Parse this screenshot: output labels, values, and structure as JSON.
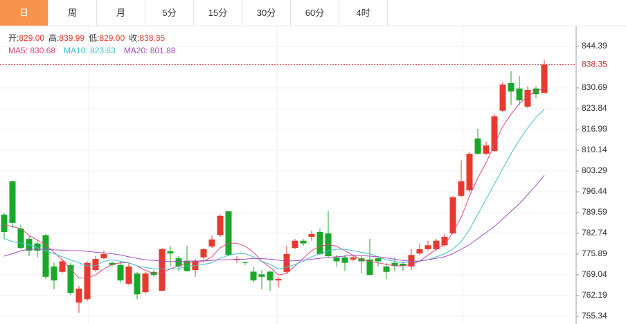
{
  "tabs": [
    "日",
    "周",
    "月",
    "5分",
    "15分",
    "30分",
    "60分",
    "4时"
  ],
  "active_tab": 0,
  "chart_data": {
    "type": "candlestick",
    "info": [
      {
        "label": "开:",
        "value": "829.00"
      },
      {
        "label": "高:",
        "value": "839.99"
      },
      {
        "label": "低:",
        "value": "829.00"
      },
      {
        "label": "收:",
        "value": "838.35"
      }
    ],
    "up_color": "#e8392f",
    "down_color": "#1aa82a",
    "current_price": 838.35,
    "ylim": [
      752.83,
      851.01
    ],
    "yticks": [
      844.39,
      830.69,
      823.84,
      816.99,
      810.14,
      803.29,
      796.44,
      789.59,
      782.74,
      775.89,
      769.04,
      762.19,
      755.34
    ],
    "grid": true,
    "ohlc": [
      [
        788.9,
        789.4,
        780.9,
        783.2
      ],
      [
        799.9,
        800.2,
        784.4,
        786.2
      ],
      [
        784.3,
        785.5,
        777.5,
        777.9
      ],
      [
        780.9,
        782.1,
        775.2,
        777.0
      ],
      [
        779.4,
        780.3,
        774.8,
        777.0
      ],
      [
        782.1,
        782.5,
        767.7,
        768.4
      ],
      [
        771.8,
        773.0,
        764.3,
        767.2
      ],
      [
        770.0,
        774.2,
        769.6,
        773.5
      ],
      [
        772.3,
        773.0,
        762.4,
        763.1
      ],
      [
        759.9,
        765.4,
        756.5,
        764.5
      ],
      [
        761.0,
        773.5,
        760.3,
        773.0
      ],
      [
        770.6,
        775.2,
        770.1,
        774.3
      ],
      [
        774.5,
        777.0,
        774.1,
        775.9
      ],
      [
        773.0,
        773.5,
        771.8,
        772.3
      ],
      [
        772.3,
        773.5,
        766.5,
        767.2
      ],
      [
        766.1,
        773.0,
        765.6,
        771.8
      ],
      [
        769.5,
        770.0,
        761.0,
        762.6
      ],
      [
        763.3,
        770.0,
        762.9,
        769.5
      ],
      [
        770.0,
        770.6,
        768.4,
        769.0
      ],
      [
        763.8,
        777.9,
        763.8,
        777.5
      ],
      [
        776.8,
        778.6,
        771.8,
        776.1
      ],
      [
        774.5,
        775.2,
        770.3,
        771.8
      ],
      [
        773.5,
        778.6,
        770.1,
        770.3
      ],
      [
        770.6,
        774.3,
        768.4,
        773.7
      ],
      [
        774.8,
        777.9,
        774.1,
        777.5
      ],
      [
        778.4,
        782.1,
        777.9,
        780.7
      ],
      [
        782.1,
        789.0,
        781.6,
        788.5
      ],
      [
        790.0,
        790.0,
        775.2,
        775.6
      ],
      [
        773.9,
        775.2,
        773.0,
        774.3
      ],
      [
        773.2,
        773.5,
        772.3,
        773.0
      ],
      [
        770.1,
        771.8,
        766.5,
        767.2
      ],
      [
        769.2,
        770.6,
        764.3,
        768.4
      ],
      [
        770.1,
        770.3,
        763.8,
        767.2
      ],
      [
        767.2,
        768.4,
        765.0,
        767.7
      ],
      [
        770.0,
        778.6,
        769.6,
        775.9
      ],
      [
        777.9,
        780.9,
        777.5,
        780.3
      ],
      [
        780.3,
        780.9,
        778.6,
        779.4
      ],
      [
        781.6,
        783.6,
        780.3,
        782.5
      ],
      [
        783.2,
        784.3,
        775.6,
        775.9
      ],
      [
        782.7,
        790.0,
        774.8,
        775.2
      ],
      [
        774.8,
        775.6,
        771.8,
        773.5
      ],
      [
        774.8,
        775.6,
        770.3,
        773.0
      ],
      [
        774.1,
        775.2,
        773.5,
        774.8
      ],
      [
        774.5,
        775.2,
        769.6,
        773.5
      ],
      [
        774.1,
        780.9,
        768.8,
        769.0
      ],
      [
        774.5,
        775.2,
        771.8,
        773.5
      ],
      [
        771.8,
        773.0,
        767.7,
        770.0
      ],
      [
        773.0,
        774.8,
        770.3,
        772.0
      ],
      [
        772.7,
        773.5,
        770.3,
        772.0
      ],
      [
        771.8,
        777.5,
        770.6,
        775.6
      ],
      [
        776.1,
        779.4,
        775.6,
        777.5
      ],
      [
        777.5,
        780.3,
        777.0,
        778.8
      ],
      [
        777.5,
        780.9,
        777.0,
        780.3
      ],
      [
        778.8,
        782.5,
        778.4,
        781.6
      ],
      [
        782.7,
        795.1,
        782.5,
        794.6
      ],
      [
        795.1,
        806.8,
        794.6,
        799.9
      ],
      [
        796.9,
        809.5,
        796.2,
        809.0
      ],
      [
        814.0,
        817.2,
        808.6,
        809.0
      ],
      [
        809.0,
        812.9,
        808.6,
        811.7
      ],
      [
        809.9,
        822.0,
        809.5,
        821.3
      ],
      [
        823.2,
        832.7,
        822.7,
        831.8
      ],
      [
        832.3,
        836.2,
        825.0,
        829.5
      ],
      [
        830.5,
        834.6,
        825.0,
        826.6
      ],
      [
        824.5,
        831.2,
        824.1,
        830.0
      ],
      [
        830.5,
        831.2,
        827.3,
        828.6
      ],
      [
        829.0,
        839.99,
        829.0,
        838.35
      ]
    ],
    "ma": [
      {
        "label": "MA5: 830.68",
        "color": "#e0447d",
        "values": [
          785.5,
          785.0,
          784.3,
          782.0,
          780.5,
          779.0,
          776.5,
          774.0,
          771.0,
          768.0,
          768.0,
          769.0,
          771.0,
          772.5,
          773.0,
          773.0,
          772.0,
          770.5,
          769.5,
          769.8,
          771.0,
          772.0,
          773.0,
          773.0,
          773.5,
          775.0,
          778.0,
          779.5,
          779.5,
          778.5,
          776.5,
          773.5,
          771.5,
          769.0,
          769.5,
          772.0,
          774.5,
          777.0,
          778.5,
          779.0,
          778.5,
          777.0,
          775.5,
          774.0,
          773.5,
          773.0,
          772.5,
          772.0,
          772.0,
          772.5,
          773.5,
          775.5,
          777.5,
          779.0,
          783.0,
          788.0,
          795.0,
          801.0,
          806.0,
          812.0,
          818.0,
          822.0,
          825.5,
          828.0,
          829.5,
          830.68
        ]
      },
      {
        "label": "MA10: 823.63",
        "color": "#3fbfd4",
        "values": [
          781.0,
          780.0,
          779.5,
          779.0,
          778.0,
          777.0,
          776.0,
          775.0,
          774.0,
          773.0,
          772.0,
          772.0,
          773.5,
          774.0,
          773.5,
          773.0,
          772.0,
          771.5,
          771.0,
          771.0,
          771.0,
          771.0,
          772.0,
          772.0,
          772.5,
          773.0,
          774.5,
          775.5,
          776.0,
          776.0,
          775.0,
          773.5,
          772.5,
          771.0,
          771.5,
          772.5,
          773.5,
          775.0,
          776.0,
          777.0,
          777.5,
          777.5,
          777.0,
          776.5,
          776.0,
          775.0,
          774.0,
          773.5,
          773.0,
          773.5,
          773.5,
          774.0,
          775.0,
          776.0,
          777.5,
          780.0,
          784.0,
          789.0,
          794.0,
          799.0,
          804.0,
          809.0,
          813.5,
          817.5,
          821.0,
          823.63
        ]
      },
      {
        "label": "MA20: 801.88",
        "color": "#a64bc0",
        "values": [
          775.2,
          776.0,
          777.0,
          777.5,
          777.5,
          777.5,
          777.3,
          777.2,
          777.0,
          777.0,
          776.8,
          776.5,
          776.3,
          776.0,
          775.6,
          775.0,
          774.5,
          774.0,
          773.8,
          773.5,
          773.4,
          773.5,
          773.6,
          773.6,
          773.7,
          773.8,
          774.0,
          774.0,
          774.1,
          774.2,
          774.5,
          774.4,
          774.2,
          773.9,
          773.6,
          773.7,
          773.9,
          774.2,
          774.5,
          774.8,
          775.0,
          775.2,
          775.5,
          775.4,
          775.2,
          775.0,
          774.6,
          774.2,
          773.8,
          773.5,
          773.6,
          774.0,
          774.5,
          775.0,
          776.0,
          777.5,
          779.0,
          781.0,
          783.0,
          785.0,
          787.5,
          790.0,
          792.5,
          795.5,
          798.5,
          801.88
        ]
      }
    ]
  }
}
